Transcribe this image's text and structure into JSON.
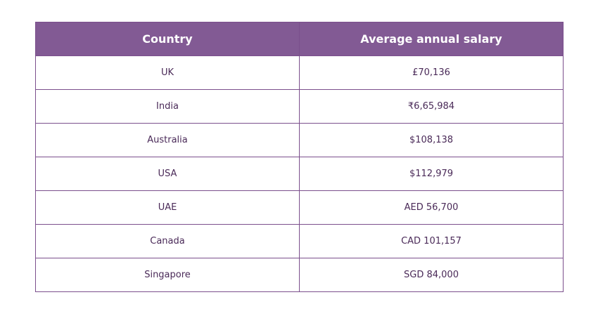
{
  "table": {
    "headers": [
      "Country",
      "Average annual salary"
    ],
    "rows": [
      [
        "UK",
        "£70,136"
      ],
      [
        "India",
        "₹6,65,984"
      ],
      [
        "Australia",
        "$108,138"
      ],
      [
        "USA",
        "$112,979"
      ],
      [
        "UAE",
        "AED 56,700"
      ],
      [
        "Canada",
        "CAD 101,157"
      ],
      [
        "Singapore",
        "SGD 84,000"
      ]
    ]
  },
  "colors": {
    "header_bg": "#825a94",
    "header_text": "#ffffff",
    "border": "#7b4f8c",
    "cell_text": "#4a2a58"
  }
}
